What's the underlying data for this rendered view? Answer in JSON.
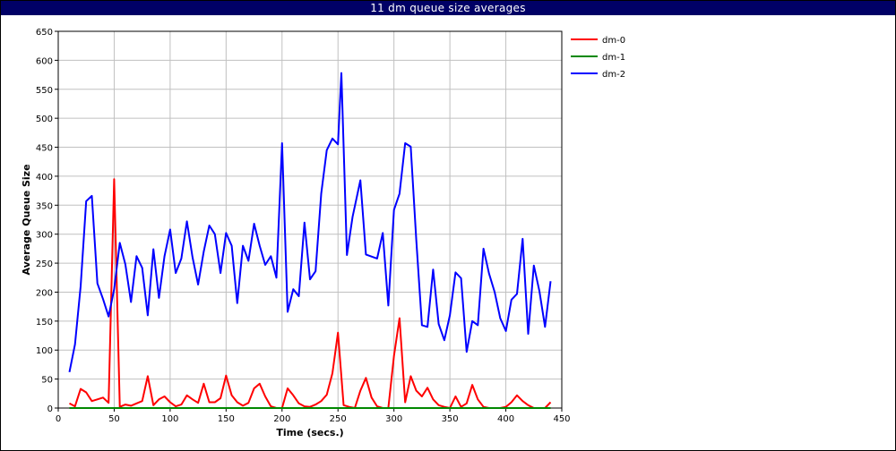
{
  "chart_data": {
    "type": "line",
    "title": "11 dm queue size averages",
    "xlabel": "Time (secs.)",
    "ylabel": "Average Queue Size",
    "xlim": [
      0,
      450
    ],
    "ylim": [
      0,
      650
    ],
    "x_ticks": [
      0,
      50,
      100,
      150,
      200,
      250,
      300,
      350,
      400,
      450
    ],
    "y_ticks": [
      0,
      50,
      100,
      150,
      200,
      250,
      300,
      350,
      400,
      450,
      500,
      550,
      600,
      650
    ],
    "grid": true,
    "legend_position": "top-right",
    "series": [
      {
        "name": "dm-0",
        "color": "#ff0000",
        "points": [
          [
            10,
            8
          ],
          [
            15,
            3
          ],
          [
            20,
            33
          ],
          [
            25,
            27
          ],
          [
            30,
            12
          ],
          [
            35,
            15
          ],
          [
            40,
            18
          ],
          [
            45,
            9
          ],
          [
            50,
            395
          ],
          [
            55,
            2
          ],
          [
            60,
            6
          ],
          [
            65,
            4
          ],
          [
            70,
            8
          ],
          [
            75,
            12
          ],
          [
            80,
            55
          ],
          [
            85,
            5
          ],
          [
            90,
            15
          ],
          [
            95,
            20
          ],
          [
            100,
            10
          ],
          [
            105,
            3
          ],
          [
            110,
            6
          ],
          [
            115,
            22
          ],
          [
            120,
            15
          ],
          [
            125,
            9
          ],
          [
            130,
            42
          ],
          [
            135,
            10
          ],
          [
            140,
            10
          ],
          [
            145,
            17
          ],
          [
            150,
            56
          ],
          [
            155,
            22
          ],
          [
            160,
            10
          ],
          [
            165,
            4
          ],
          [
            170,
            9
          ],
          [
            175,
            34
          ],
          [
            180,
            42
          ],
          [
            185,
            20
          ],
          [
            190,
            3
          ],
          [
            195,
            0
          ],
          [
            200,
            0
          ],
          [
            205,
            34
          ],
          [
            210,
            22
          ],
          [
            215,
            8
          ],
          [
            220,
            3
          ],
          [
            225,
            2
          ],
          [
            230,
            6
          ],
          [
            235,
            12
          ],
          [
            240,
            23
          ],
          [
            245,
            60
          ],
          [
            250,
            130
          ],
          [
            255,
            5
          ],
          [
            260,
            2
          ],
          [
            265,
            0
          ],
          [
            270,
            30
          ],
          [
            275,
            52
          ],
          [
            280,
            18
          ],
          [
            285,
            3
          ],
          [
            290,
            0
          ],
          [
            295,
            0
          ],
          [
            300,
            90
          ],
          [
            305,
            155
          ],
          [
            310,
            10
          ],
          [
            315,
            55
          ],
          [
            320,
            30
          ],
          [
            325,
            20
          ],
          [
            330,
            35
          ],
          [
            335,
            15
          ],
          [
            340,
            5
          ],
          [
            345,
            2
          ],
          [
            350,
            0
          ],
          [
            355,
            20
          ],
          [
            360,
            2
          ],
          [
            365,
            8
          ],
          [
            370,
            40
          ],
          [
            375,
            15
          ],
          [
            380,
            2
          ],
          [
            385,
            0
          ],
          [
            390,
            0
          ],
          [
            395,
            0
          ],
          [
            400,
            2
          ],
          [
            405,
            10
          ],
          [
            410,
            22
          ],
          [
            415,
            12
          ],
          [
            420,
            5
          ],
          [
            425,
            0
          ],
          [
            430,
            0
          ],
          [
            435,
            0
          ],
          [
            440,
            10
          ]
        ]
      },
      {
        "name": "dm-1",
        "color": "#008800",
        "points": [
          [
            10,
            0
          ],
          [
            50,
            0
          ],
          [
            100,
            0
          ],
          [
            150,
            0
          ],
          [
            200,
            0
          ],
          [
            250,
            0
          ],
          [
            300,
            0
          ],
          [
            350,
            0
          ],
          [
            400,
            0
          ],
          [
            440,
            0
          ]
        ]
      },
      {
        "name": "dm-2",
        "color": "#0000ff",
        "points": [
          [
            10,
            62
          ],
          [
            15,
            110
          ],
          [
            20,
            210
          ],
          [
            25,
            357
          ],
          [
            30,
            366
          ],
          [
            35,
            215
          ],
          [
            40,
            188
          ],
          [
            45,
            158
          ],
          [
            50,
            205
          ],
          [
            55,
            285
          ],
          [
            60,
            248
          ],
          [
            65,
            183
          ],
          [
            70,
            262
          ],
          [
            75,
            242
          ],
          [
            80,
            160
          ],
          [
            85,
            274
          ],
          [
            90,
            190
          ],
          [
            95,
            262
          ],
          [
            100,
            308
          ],
          [
            105,
            233
          ],
          [
            110,
            258
          ],
          [
            115,
            322
          ],
          [
            120,
            260
          ],
          [
            125,
            213
          ],
          [
            130,
            270
          ],
          [
            135,
            315
          ],
          [
            140,
            300
          ],
          [
            145,
            233
          ],
          [
            150,
            302
          ],
          [
            155,
            280
          ],
          [
            160,
            181
          ],
          [
            165,
            280
          ],
          [
            170,
            254
          ],
          [
            175,
            318
          ],
          [
            180,
            280
          ],
          [
            185,
            247
          ],
          [
            190,
            262
          ],
          [
            195,
            225
          ],
          [
            200,
            457
          ],
          [
            205,
            166
          ],
          [
            210,
            205
          ],
          [
            215,
            193
          ],
          [
            220,
            320
          ],
          [
            225,
            222
          ],
          [
            230,
            236
          ],
          [
            235,
            370
          ],
          [
            240,
            445
          ],
          [
            245,
            465
          ],
          [
            250,
            455
          ],
          [
            253,
            578
          ],
          [
            258,
            264
          ],
          [
            263,
            330
          ],
          [
            270,
            393
          ],
          [
            275,
            265
          ],
          [
            285,
            258
          ],
          [
            290,
            302
          ],
          [
            295,
            177
          ],
          [
            300,
            342
          ],
          [
            305,
            370
          ],
          [
            310,
            457
          ],
          [
            315,
            451
          ],
          [
            320,
            290
          ],
          [
            325,
            143
          ],
          [
            330,
            140
          ],
          [
            335,
            239
          ],
          [
            340,
            145
          ],
          [
            345,
            117
          ],
          [
            350,
            160
          ],
          [
            355,
            234
          ],
          [
            360,
            224
          ],
          [
            365,
            97
          ],
          [
            370,
            150
          ],
          [
            375,
            143
          ],
          [
            380,
            275
          ],
          [
            385,
            232
          ],
          [
            390,
            200
          ],
          [
            395,
            155
          ],
          [
            400,
            133
          ],
          [
            405,
            187
          ],
          [
            410,
            197
          ],
          [
            415,
            292
          ],
          [
            420,
            128
          ],
          [
            425,
            246
          ],
          [
            430,
            202
          ],
          [
            435,
            140
          ],
          [
            440,
            219
          ]
        ]
      }
    ]
  }
}
